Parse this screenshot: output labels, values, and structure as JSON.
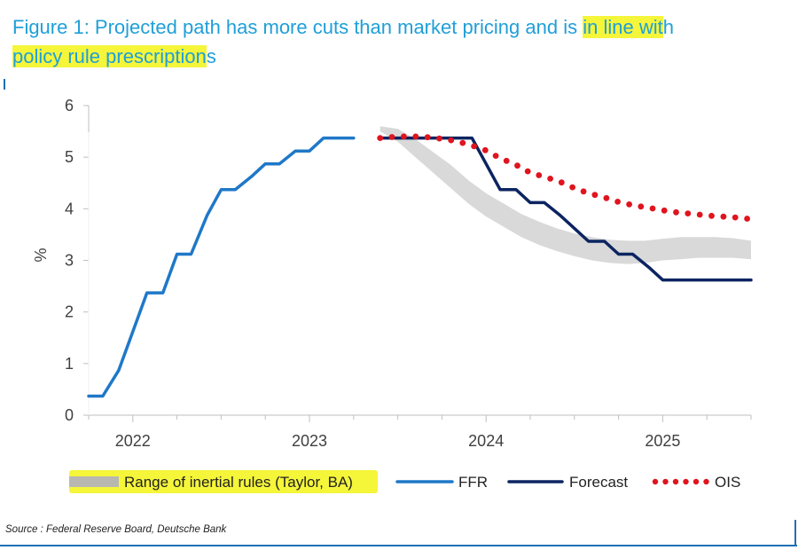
{
  "header": {
    "title_plain_1": "Figure 1: Projected path has more cuts than market pricing and is ",
    "title_hl_1": "in line wit",
    "title_plain_2": "h",
    "title_hl_2": "policy rule prescription",
    "title_plain_3": "s"
  },
  "footer": {
    "source": "Source : Federal Reserve Board, Deutsche Bank"
  },
  "colors": {
    "title": "#1f9fd8",
    "highlight": "#f5f53a",
    "ffr": "#1f78c8",
    "forecast": "#0c2461",
    "ois": "#e0141e",
    "band": "#d9d9d9",
    "axis": "#bfbfbf"
  },
  "chart_data": {
    "type": "line",
    "ylabel": "%",
    "ylim": [
      0,
      6
    ],
    "yticks": [
      "0",
      "1",
      "2",
      "3",
      "4",
      "5",
      "6"
    ],
    "xlim": [
      2021.75,
      2025.5
    ],
    "xticks": [
      {
        "label": "2022",
        "value": 2022
      },
      {
        "label": "2023",
        "value": 2023
      },
      {
        "label": "2024",
        "value": 2024
      },
      {
        "label": "2025",
        "value": 2025
      }
    ],
    "legend_position": "bottom",
    "series": [
      {
        "name": "Range of inertial rules (Taylor, BA)",
        "kind": "band",
        "x": [
          2023.4,
          2023.5,
          2023.6,
          2023.7,
          2023.8,
          2023.9,
          2024.0,
          2024.1,
          2024.2,
          2024.3,
          2024.4,
          2024.5,
          2024.6,
          2024.7,
          2024.8,
          2024.9,
          2025.0,
          2025.1,
          2025.2,
          2025.3,
          2025.4,
          2025.5
        ],
        "upper": [
          5.6,
          5.55,
          5.35,
          5.1,
          4.85,
          4.55,
          4.3,
          4.1,
          3.9,
          3.75,
          3.62,
          3.52,
          3.45,
          3.4,
          3.38,
          3.38,
          3.42,
          3.45,
          3.45,
          3.45,
          3.43,
          3.38
        ],
        "lower": [
          5.5,
          5.3,
          5.0,
          4.7,
          4.4,
          4.1,
          3.85,
          3.65,
          3.45,
          3.3,
          3.18,
          3.08,
          3.0,
          2.95,
          2.93,
          2.95,
          3.0,
          3.02,
          3.05,
          3.05,
          3.05,
          3.02
        ]
      },
      {
        "name": "FFR",
        "kind": "line",
        "x": [
          2021.75,
          2021.83,
          2021.92,
          2022.0,
          2022.08,
          2022.17,
          2022.25,
          2022.33,
          2022.42,
          2022.5,
          2022.58,
          2022.67,
          2022.75,
          2022.83,
          2022.92,
          2023.0,
          2023.08,
          2023.17,
          2023.25
        ],
        "y": [
          0.37,
          0.37,
          0.87,
          1.62,
          2.37,
          2.37,
          3.12,
          3.12,
          3.87,
          4.37,
          4.37,
          4.62,
          4.87,
          4.87,
          5.12,
          5.12,
          5.37,
          5.37,
          5.37
        ]
      },
      {
        "name": "Forecast",
        "kind": "line",
        "x": [
          2023.4,
          2023.5,
          2023.6,
          2023.7,
          2023.8,
          2023.92,
          2024.0,
          2024.08,
          2024.17,
          2024.25,
          2024.33,
          2024.42,
          2024.5,
          2024.58,
          2024.67,
          2024.75,
          2024.83,
          2024.92,
          2025.0,
          2025.17,
          2025.33,
          2025.5
        ],
        "y": [
          5.37,
          5.37,
          5.37,
          5.37,
          5.37,
          5.37,
          4.87,
          4.37,
          4.37,
          4.12,
          4.12,
          3.87,
          3.62,
          3.37,
          3.37,
          3.12,
          3.12,
          2.87,
          2.62,
          2.62,
          2.62,
          2.62
        ]
      },
      {
        "name": "OIS",
        "kind": "dotted",
        "x": [
          2023.4,
          2023.5,
          2023.6,
          2023.7,
          2023.8,
          2023.9,
          2024.0,
          2024.08,
          2024.17,
          2024.25,
          2024.33,
          2024.42,
          2024.5,
          2024.58,
          2024.67,
          2024.75,
          2024.83,
          2024.92,
          2025.0,
          2025.08,
          2025.17,
          2025.25,
          2025.33,
          2025.42,
          2025.5
        ],
        "y": [
          5.37,
          5.4,
          5.4,
          5.38,
          5.33,
          5.25,
          5.13,
          4.98,
          4.85,
          4.7,
          4.62,
          4.52,
          4.4,
          4.3,
          4.22,
          4.13,
          4.07,
          4.02,
          3.97,
          3.93,
          3.9,
          3.87,
          3.85,
          3.83,
          3.8
        ]
      }
    ]
  }
}
